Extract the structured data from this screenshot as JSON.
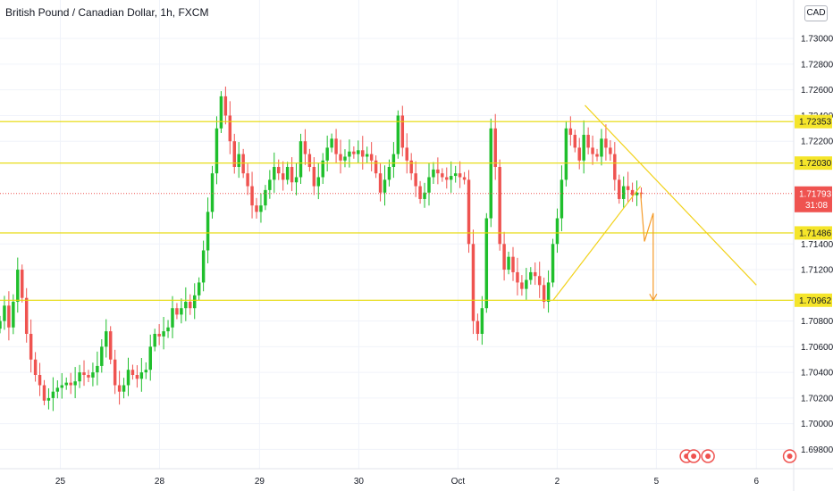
{
  "header": {
    "symbol_title": "British Pound / Canadian Dollar, 1h, FXCM",
    "currency": "CAD"
  },
  "colors": {
    "up": "#26a69a",
    "up_bright": "#1fbf2c",
    "down": "#ef5350",
    "level_line": "#e6d800",
    "level_label_bg": "#f5e52a",
    "pattern_line": "#f2d21b",
    "projection_arrow": "#f59b2a",
    "price_line": "#ef5350",
    "axis_text": "#131722",
    "grid": "#f0f3fa"
  },
  "chart_data": {
    "type": "candlestick",
    "y_axis": {
      "position": "right",
      "range": [
        1.6965,
        1.733
      ],
      "ticks": [
        "1.69800",
        "1.70000",
        "1.70200",
        "1.70400",
        "1.70600",
        "1.70800",
        "1.71200",
        "1.71400",
        "1.72200",
        "1.72400",
        "1.72600",
        "1.72800",
        "1.73000"
      ]
    },
    "x_axis": {
      "ticks": [
        {
          "label": "25",
          "pos": 0.076
        },
        {
          "label": "28",
          "pos": 0.201
        },
        {
          "label": "29",
          "pos": 0.327
        },
        {
          "label": "30",
          "pos": 0.452
        },
        {
          "label": "Oct",
          "pos": 0.577
        },
        {
          "label": "2",
          "pos": 0.702
        },
        {
          "label": "5",
          "pos": 0.827
        },
        {
          "label": "6",
          "pos": 0.953
        }
      ]
    },
    "horizontal_levels": [
      1.72353,
      1.7203,
      1.71486,
      1.70962
    ],
    "level_labels": [
      "1.72353",
      "1.72030",
      "1.71486",
      "1.70962"
    ],
    "current_price": {
      "value": 1.71793,
      "label": "1.71793",
      "countdown": "31:08"
    },
    "closes": [
      1.708,
      1.7092,
      1.7075,
      1.7095,
      1.712,
      1.7098,
      1.707,
      1.705,
      1.7038,
      1.703,
      1.7018,
      1.702,
      1.7025,
      1.7028,
      1.703,
      1.7032,
      1.703,
      1.7033,
      1.704,
      1.7038,
      1.7036,
      1.704,
      1.7045,
      1.706,
      1.7072,
      1.705,
      1.703,
      1.7025,
      1.703,
      1.7042,
      1.7038,
      1.7035,
      1.704,
      1.7042,
      1.706,
      1.707,
      1.7068,
      1.7072,
      1.7075,
      1.709,
      1.7085,
      1.709,
      1.7095,
      1.709,
      1.71,
      1.711,
      1.7135,
      1.7165,
      1.7195,
      1.723,
      1.7255,
      1.724,
      1.722,
      1.72,
      1.721,
      1.7195,
      1.7185,
      1.717,
      1.7165,
      1.717,
      1.7182,
      1.719,
      1.72,
      1.7195,
      1.719,
      1.72,
      1.7188,
      1.7192,
      1.722,
      1.721,
      1.72,
      1.7185,
      1.7192,
      1.7205,
      1.7215,
      1.7222,
      1.721,
      1.7205,
      1.7208,
      1.7212,
      1.721,
      1.7213,
      1.7208,
      1.721,
      1.7205,
      1.7195,
      1.718,
      1.719,
      1.72,
      1.721,
      1.724,
      1.7215,
      1.7205,
      1.7195,
      1.7185,
      1.7175,
      1.718,
      1.7192,
      1.7198,
      1.7195,
      1.7192,
      1.719,
      1.7193,
      1.7195,
      1.7192,
      1.719,
      1.714,
      1.708,
      1.707,
      1.709,
      1.716,
      1.723,
      1.72,
      1.714,
      1.712,
      1.713,
      1.7118,
      1.711,
      1.7105,
      1.7112,
      1.7118,
      1.7115,
      1.7108,
      1.7095,
      1.711,
      1.714,
      1.716,
      1.719,
      1.723,
      1.7225,
      1.7215,
      1.7205,
      1.7225,
      1.7215,
      1.721,
      1.7208,
      1.7222,
      1.7215,
      1.721,
      1.719,
      1.7175,
      1.7185,
      1.7182,
      1.7178,
      1.718,
      1.7179
    ],
    "x_at_first_bar": 0.0,
    "x_at_last_bar": 0.808,
    "pattern": {
      "upper_line": [
        [
          0.737,
          1.7248
        ],
        [
          0.953,
          1.7108
        ]
      ],
      "lower_line": [
        [
          0.697,
          1.70962
        ],
        [
          0.807,
          1.7185
        ]
      ]
    },
    "projection": [
      [
        0.807,
        1.718
      ],
      [
        0.812,
        1.7142
      ],
      [
        0.823,
        1.7164
      ],
      [
        0.823,
        1.70962
      ]
    ]
  }
}
